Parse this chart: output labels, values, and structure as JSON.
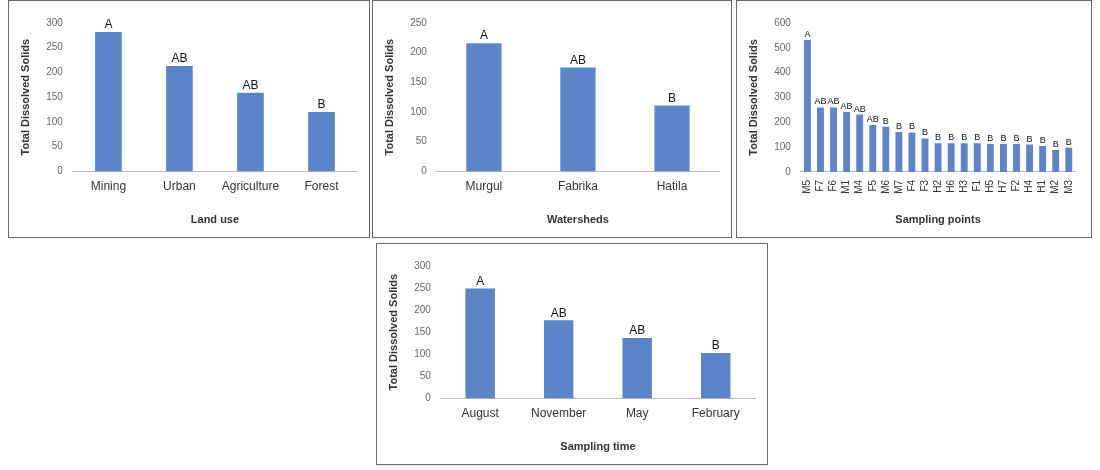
{
  "chart_data": [
    {
      "type": "bar",
      "xlabel": "Land use",
      "ylabel": "Total Dissolved Solids",
      "categories": [
        "Mining",
        "Urban",
        "Agriculture",
        "Forest"
      ],
      "values": [
        282,
        213,
        159,
        120
      ],
      "value_labels": [
        "A",
        "AB",
        "AB",
        "B"
      ],
      "color": "#5b85c8",
      "ylim": [
        0,
        300
      ],
      "yticks": [
        0,
        50,
        100,
        150,
        200,
        250,
        300
      ]
    },
    {
      "type": "bar",
      "xlabel": "Watersheds",
      "ylabel": "Total Dissolved Solids",
      "categories": [
        "Murgul",
        "Fabrika",
        "Hatila"
      ],
      "values": [
        216,
        175,
        111
      ],
      "value_labels": [
        "A",
        "AB",
        "B"
      ],
      "color": "#5b85c8",
      "ylim": [
        0,
        250
      ],
      "yticks": [
        0,
        50,
        100,
        150,
        200,
        250
      ]
    },
    {
      "type": "bar",
      "xlabel": "Sampling points",
      "ylabel": "Total Dissolved Solids",
      "categories": [
        "M5",
        "F7",
        "F6",
        "M1",
        "M4",
        "F5",
        "M6",
        "M7",
        "F4",
        "F3",
        "H2",
        "H6",
        "H3",
        "F1",
        "H5",
        "H7",
        "F2",
        "H4",
        "H1",
        "M2",
        "M3"
      ],
      "values": [
        531,
        260,
        260,
        241,
        231,
        189,
        182,
        161,
        159,
        135,
        115,
        115,
        115,
        115,
        112,
        112,
        112,
        110,
        104,
        88,
        97
      ],
      "value_labels": [
        "A",
        "AB",
        "AB",
        "AB",
        "AB",
        "AB",
        "B",
        "B",
        "B",
        "B",
        "B",
        "B",
        "B",
        "B",
        "B",
        "B",
        "B",
        "B",
        "B",
        "B",
        "B"
      ],
      "color": "#5b85c8",
      "ylim": [
        0,
        600
      ],
      "yticks": [
        0,
        100,
        200,
        300,
        400,
        500,
        600
      ]
    },
    {
      "type": "bar",
      "xlabel": "Sampling time",
      "ylabel": "Total Dissolved Solids",
      "categories": [
        "August",
        "November",
        "May",
        "February"
      ],
      "values": [
        249,
        177,
        137,
        103
      ],
      "value_labels": [
        "A",
        "AB",
        "AB",
        "B"
      ],
      "color": "#5b85c8",
      "ylim": [
        0,
        300
      ],
      "yticks": [
        0,
        50,
        100,
        150,
        200,
        250,
        300
      ]
    }
  ]
}
